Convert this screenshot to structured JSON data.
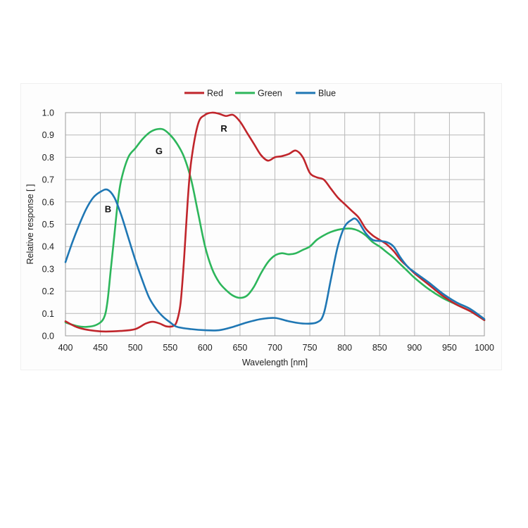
{
  "chart_data": {
    "type": "line",
    "xlabel": "Wavelength [nm]",
    "ylabel": "Relative response [ ]",
    "xlim": [
      400,
      1000
    ],
    "ylim": [
      0,
      1.0
    ],
    "x_ticks": [
      "400",
      "450",
      "500",
      "550",
      "600",
      "650",
      "700",
      "750",
      "800",
      "850",
      "900",
      "950",
      "1000"
    ],
    "y_ticks": [
      "0.0",
      "0.1",
      "0.2",
      "0.3",
      "0.4",
      "0.5",
      "0.6",
      "0.7",
      "0.8",
      "0.9",
      "1.0"
    ],
    "grid": true,
    "legend_position": "top-center",
    "series": [
      {
        "name": "Red",
        "color": "#c0252b",
        "points": [
          [
            400,
            0.065
          ],
          [
            420,
            0.035
          ],
          [
            450,
            0.02
          ],
          [
            480,
            0.022
          ],
          [
            500,
            0.03
          ],
          [
            515,
            0.055
          ],
          [
            525,
            0.063
          ],
          [
            535,
            0.055
          ],
          [
            545,
            0.042
          ],
          [
            555,
            0.045
          ],
          [
            560,
            0.07
          ],
          [
            565,
            0.15
          ],
          [
            570,
            0.35
          ],
          [
            575,
            0.6
          ],
          [
            580,
            0.78
          ],
          [
            590,
            0.95
          ],
          [
            600,
            0.99
          ],
          [
            610,
            1.0
          ],
          [
            620,
            0.995
          ],
          [
            630,
            0.985
          ],
          [
            640,
            0.99
          ],
          [
            650,
            0.96
          ],
          [
            660,
            0.91
          ],
          [
            670,
            0.86
          ],
          [
            680,
            0.81
          ],
          [
            690,
            0.785
          ],
          [
            700,
            0.8
          ],
          [
            710,
            0.805
          ],
          [
            720,
            0.815
          ],
          [
            730,
            0.83
          ],
          [
            740,
            0.8
          ],
          [
            750,
            0.73
          ],
          [
            760,
            0.71
          ],
          [
            770,
            0.7
          ],
          [
            780,
            0.66
          ],
          [
            790,
            0.62
          ],
          [
            800,
            0.59
          ],
          [
            810,
            0.56
          ],
          [
            820,
            0.53
          ],
          [
            830,
            0.48
          ],
          [
            840,
            0.45
          ],
          [
            850,
            0.43
          ],
          [
            860,
            0.41
          ],
          [
            870,
            0.38
          ],
          [
            880,
            0.34
          ],
          [
            890,
            0.31
          ],
          [
            900,
            0.28
          ],
          [
            920,
            0.23
          ],
          [
            940,
            0.18
          ],
          [
            960,
            0.14
          ],
          [
            980,
            0.11
          ],
          [
            1000,
            0.07
          ]
        ]
      },
      {
        "name": "Green",
        "color": "#2db65b",
        "points": [
          [
            400,
            0.06
          ],
          [
            415,
            0.045
          ],
          [
            430,
            0.04
          ],
          [
            445,
            0.05
          ],
          [
            455,
            0.08
          ],
          [
            460,
            0.15
          ],
          [
            465,
            0.3
          ],
          [
            470,
            0.45
          ],
          [
            475,
            0.6
          ],
          [
            480,
            0.7
          ],
          [
            490,
            0.8
          ],
          [
            500,
            0.84
          ],
          [
            510,
            0.88
          ],
          [
            520,
            0.91
          ],
          [
            530,
            0.925
          ],
          [
            540,
            0.925
          ],
          [
            550,
            0.9
          ],
          [
            560,
            0.86
          ],
          [
            570,
            0.8
          ],
          [
            580,
            0.7
          ],
          [
            590,
            0.55
          ],
          [
            600,
            0.4
          ],
          [
            610,
            0.3
          ],
          [
            620,
            0.24
          ],
          [
            630,
            0.205
          ],
          [
            640,
            0.18
          ],
          [
            650,
            0.17
          ],
          [
            660,
            0.18
          ],
          [
            670,
            0.22
          ],
          [
            680,
            0.28
          ],
          [
            690,
            0.33
          ],
          [
            700,
            0.36
          ],
          [
            710,
            0.37
          ],
          [
            720,
            0.365
          ],
          [
            730,
            0.37
          ],
          [
            740,
            0.385
          ],
          [
            750,
            0.4
          ],
          [
            760,
            0.43
          ],
          [
            770,
            0.45
          ],
          [
            780,
            0.465
          ],
          [
            790,
            0.475
          ],
          [
            800,
            0.48
          ],
          [
            810,
            0.48
          ],
          [
            820,
            0.47
          ],
          [
            830,
            0.45
          ],
          [
            840,
            0.42
          ],
          [
            850,
            0.4
          ],
          [
            860,
            0.375
          ],
          [
            870,
            0.35
          ],
          [
            880,
            0.32
          ],
          [
            890,
            0.29
          ],
          [
            900,
            0.26
          ],
          [
            920,
            0.21
          ],
          [
            940,
            0.17
          ],
          [
            960,
            0.14
          ],
          [
            980,
            0.11
          ],
          [
            1000,
            0.07
          ]
        ]
      },
      {
        "name": "Blue",
        "color": "#1f77b4",
        "points": [
          [
            400,
            0.33
          ],
          [
            410,
            0.42
          ],
          [
            420,
            0.5
          ],
          [
            430,
            0.57
          ],
          [
            440,
            0.62
          ],
          [
            450,
            0.645
          ],
          [
            460,
            0.655
          ],
          [
            470,
            0.62
          ],
          [
            480,
            0.54
          ],
          [
            490,
            0.44
          ],
          [
            500,
            0.34
          ],
          [
            510,
            0.25
          ],
          [
            520,
            0.17
          ],
          [
            530,
            0.12
          ],
          [
            540,
            0.085
          ],
          [
            550,
            0.06
          ],
          [
            560,
            0.04
          ],
          [
            580,
            0.03
          ],
          [
            600,
            0.025
          ],
          [
            620,
            0.025
          ],
          [
            640,
            0.04
          ],
          [
            660,
            0.06
          ],
          [
            680,
            0.075
          ],
          [
            700,
            0.08
          ],
          [
            720,
            0.065
          ],
          [
            740,
            0.055
          ],
          [
            760,
            0.06
          ],
          [
            770,
            0.1
          ],
          [
            780,
            0.25
          ],
          [
            790,
            0.4
          ],
          [
            800,
            0.49
          ],
          [
            810,
            0.52
          ],
          [
            815,
            0.525
          ],
          [
            820,
            0.51
          ],
          [
            830,
            0.46
          ],
          [
            840,
            0.43
          ],
          [
            850,
            0.425
          ],
          [
            860,
            0.42
          ],
          [
            870,
            0.4
          ],
          [
            880,
            0.35
          ],
          [
            890,
            0.31
          ],
          [
            900,
            0.285
          ],
          [
            920,
            0.24
          ],
          [
            940,
            0.19
          ],
          [
            960,
            0.15
          ],
          [
            980,
            0.12
          ],
          [
            1000,
            0.075
          ]
        ]
      }
    ],
    "annotations": [
      {
        "text": "R",
        "x": 627,
        "y": 0.93
      },
      {
        "text": "G",
        "x": 534,
        "y": 0.83
      },
      {
        "text": "B",
        "x": 461,
        "y": 0.57
      }
    ]
  }
}
